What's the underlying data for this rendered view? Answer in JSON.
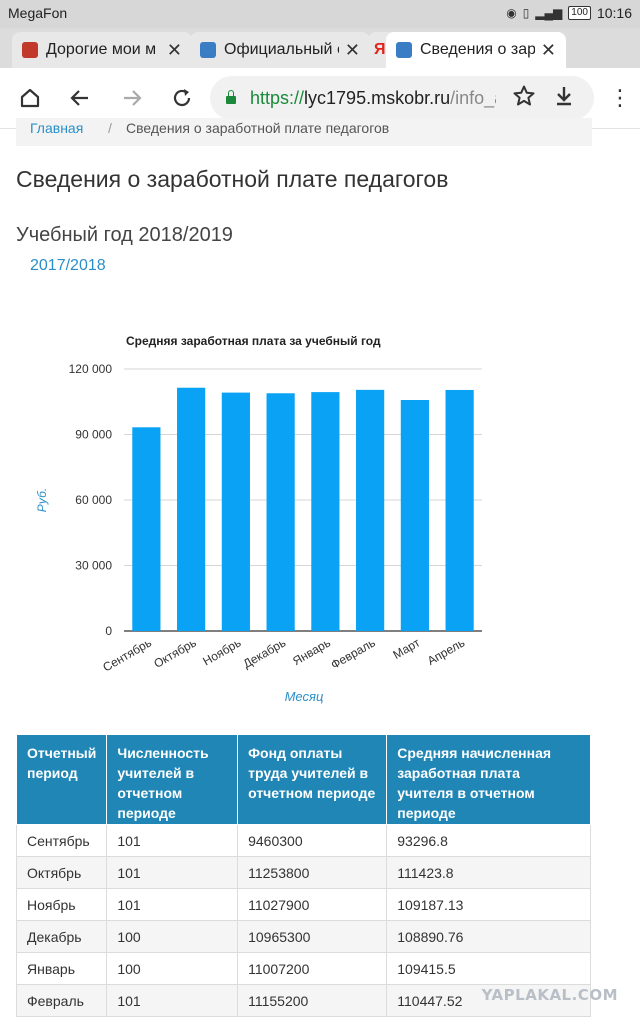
{
  "status_bar": {
    "carrier": "MegaFon",
    "time": "10:16",
    "battery": "100"
  },
  "tabs": [
    {
      "title": "Дорогие мои м",
      "active": false
    },
    {
      "title": "Официальный с",
      "active": false
    },
    {
      "title": "Я",
      "active": false
    },
    {
      "title": "Сведения о зар",
      "active": true
    }
  ],
  "toolbar": {
    "url_scheme": "https://",
    "url_host": "lyc1795.mskobr.ru",
    "url_path": "/info_a"
  },
  "breadcrumb": {
    "home": "Главная",
    "separator": "/",
    "current": "Сведения о заработной плате педагогов"
  },
  "page": {
    "title": "Сведения о заработной плате педагогов",
    "year_current": "Учебный год 2018/2019",
    "year_prev_link": "2017/2018"
  },
  "chart_data": {
    "type": "bar",
    "title": "Средняя заработная плата за учебный год",
    "xlabel": "Месяц",
    "ylabel": "Руб.",
    "categories": [
      "Сентябрь",
      "Октябрь",
      "Ноябрь",
      "Декабрь",
      "Январь",
      "Февраль",
      "Март",
      "Апрель"
    ],
    "values": [
      93296.8,
      111423.8,
      109187.13,
      108890.76,
      109415.5,
      110447.52,
      105800,
      110400
    ],
    "ylim": [
      0,
      120000
    ],
    "yticks": [
      0,
      30000,
      60000,
      90000,
      120000
    ],
    "ytick_labels": [
      "0",
      "30 000",
      "60 000",
      "90 000",
      "120 000"
    ],
    "bar_color": "#0aa2f5",
    "grid": true
  },
  "table": {
    "headers": [
      "Отчетный период",
      "Численность учителей в отчетном периоде",
      "Фонд оплаты труда учителей в отчетном периоде",
      "Средняя начисленная заработная плата учителя в отчетном периоде"
    ],
    "rows": [
      [
        "Сентябрь",
        "101",
        "9460300",
        "93296.8"
      ],
      [
        "Октябрь",
        "101",
        "11253800",
        "111423.8"
      ],
      [
        "Ноябрь",
        "101",
        "11027900",
        "109187.13"
      ],
      [
        "Декабрь",
        "100",
        "10965300",
        "108890.76"
      ],
      [
        "Январь",
        "100",
        "11007200",
        "109415.5"
      ],
      [
        "Февраль",
        "101",
        "11155200",
        "110447.52"
      ]
    ]
  },
  "watermark": "YAPLAKAL.COM",
  "colors": {
    "link": "#2a8fc9",
    "table_header": "#1f86b6",
    "secure_green": "#1a8a3a"
  }
}
